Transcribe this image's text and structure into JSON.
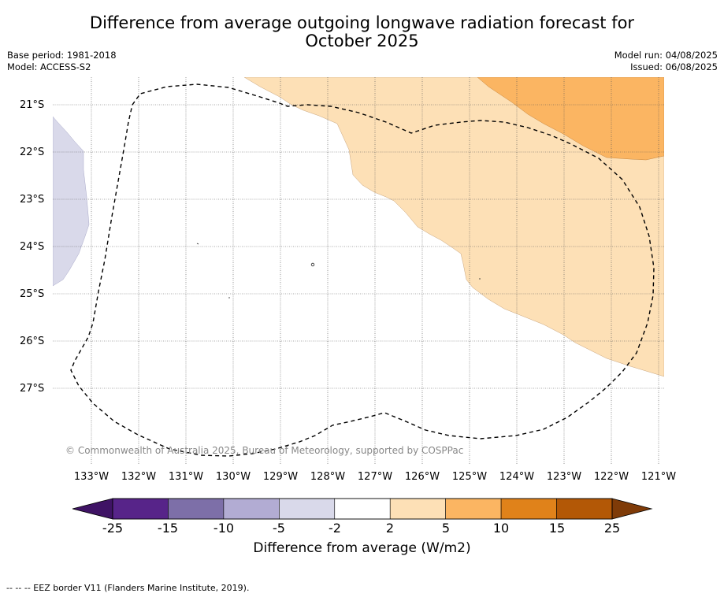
{
  "title_line1": "Difference from average outgoing longwave radiation forecast for",
  "title_line2": "October 2025",
  "base_period": "Base period: 1981-2018",
  "model": "Model: ACCESS-S2",
  "model_run": "Model run: 04/08/2025",
  "issued": "Issued: 06/08/2025",
  "lat_labels": [
    "21°S",
    "22°S",
    "23°S",
    "24°S",
    "25°S",
    "26°S",
    "27°S"
  ],
  "lon_labels": [
    "133°W",
    "132°W",
    "131°W",
    "130°W",
    "129°W",
    "128°W",
    "127°W",
    "126°W",
    "125°W",
    "124°W",
    "123°W",
    "122°W",
    "121°W"
  ],
  "copyright": "© Commonwealth of Australia 2025, Bureau of Meteorology, supported by COSPPac",
  "colorbar": {
    "ticks": [
      "-25",
      "-15",
      "-10",
      "-5",
      "-2",
      "2",
      "5",
      "10",
      "15",
      "25"
    ],
    "colors": [
      "#3f1365",
      "#572489",
      "#7d6fa8",
      "#b2acd3",
      "#d9d9ea",
      "#ffffff",
      "#fde0b6",
      "#fbb562",
      "#e0821a",
      "#b35806",
      "#7f3b08"
    ],
    "label": "Difference from average (W/m2)"
  },
  "map_colors": {
    "light_orange": "#fde0b6",
    "orange": "#fbb562",
    "light_purple": "#d9d9ea"
  },
  "footnote": "--  --  -- EEZ border V11 (Flanders Marine Institute, 2019)."
}
